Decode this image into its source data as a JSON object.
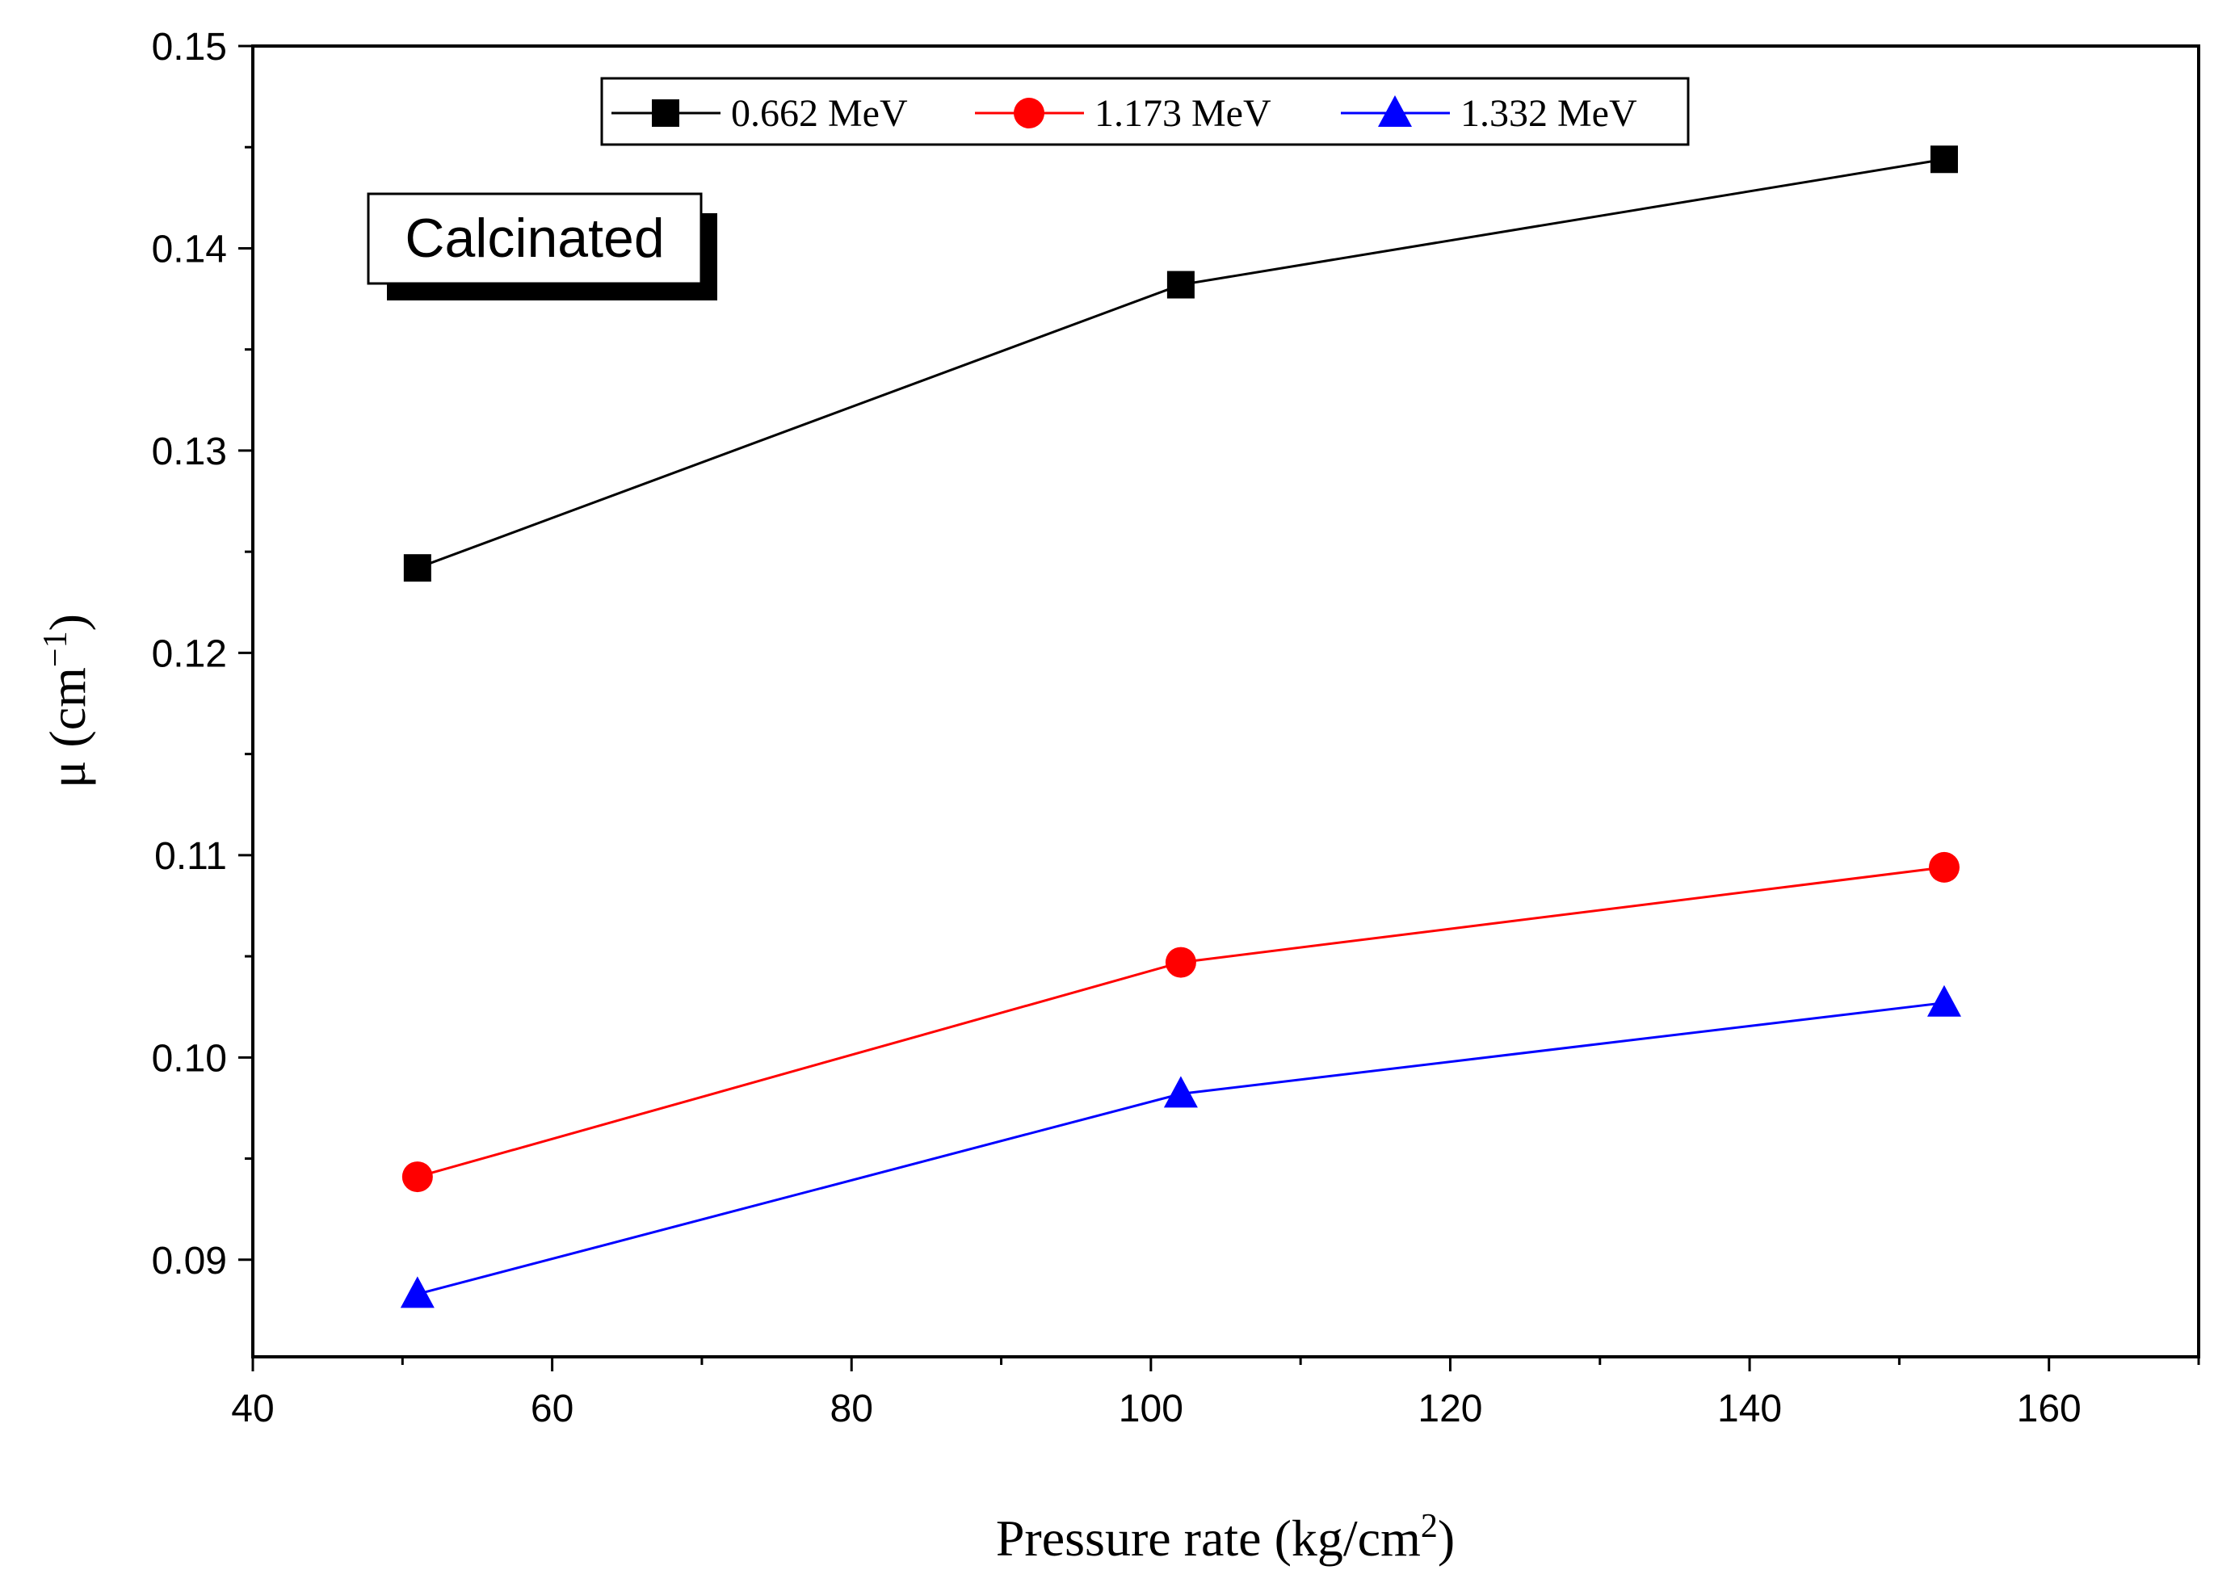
{
  "chart_data": {
    "type": "line",
    "title": "",
    "annotation": "Calcinated",
    "xlabel": {
      "main": "Pressure rate (kg/cm",
      "sup": "2",
      "end": ")"
    },
    "ylabel": {
      "main": "μ (cm",
      "sup": "−1",
      "end": ")"
    },
    "xlim": [
      40,
      170
    ],
    "ylim": [
      0.0852,
      0.15
    ],
    "xticks": [
      40,
      60,
      80,
      100,
      120,
      140,
      160
    ],
    "xtick_labels": [
      "40",
      "60",
      "80",
      "100",
      "120",
      "140",
      "160"
    ],
    "yticks": [
      0.09,
      0.1,
      0.11,
      0.12,
      0.13,
      0.14,
      0.15
    ],
    "ytick_labels": [
      "0.09",
      "0.10",
      "0.11",
      "0.12",
      "0.13",
      "0.14",
      "0.15"
    ],
    "x": [
      51,
      102,
      153
    ],
    "series": [
      {
        "name": "0.662 MeV",
        "values": [
          0.1242,
          0.1382,
          0.1444
        ],
        "color": "#000000",
        "marker": "square"
      },
      {
        "name": "1.173 MeV",
        "values": [
          0.0941,
          0.1047,
          0.1094
        ],
        "color": "#ff0000",
        "marker": "circle"
      },
      {
        "name": "1.332 MeV",
        "values": [
          0.0883,
          0.0982,
          0.1027
        ],
        "color": "#0000ff",
        "marker": "triangle"
      }
    ],
    "legend_position": "top-center",
    "grid": false
  }
}
